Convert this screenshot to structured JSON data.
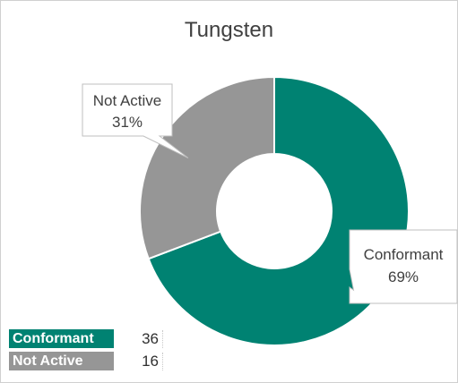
{
  "chart_data": {
    "type": "pie",
    "variant": "donut",
    "title": "Tungsten",
    "categories": [
      "Conformant",
      "Not Active"
    ],
    "values": [
      36,
      16
    ],
    "percent_labels": [
      "69%",
      "31%"
    ],
    "colors": [
      "#008272",
      "#969696"
    ],
    "legend": "bottom-left",
    "legend_entries": [
      {
        "label": "Conformant",
        "count": "36",
        "color": "#008272"
      },
      {
        "label": "Not Active",
        "count": "16",
        "color": "#969696"
      }
    ]
  }
}
